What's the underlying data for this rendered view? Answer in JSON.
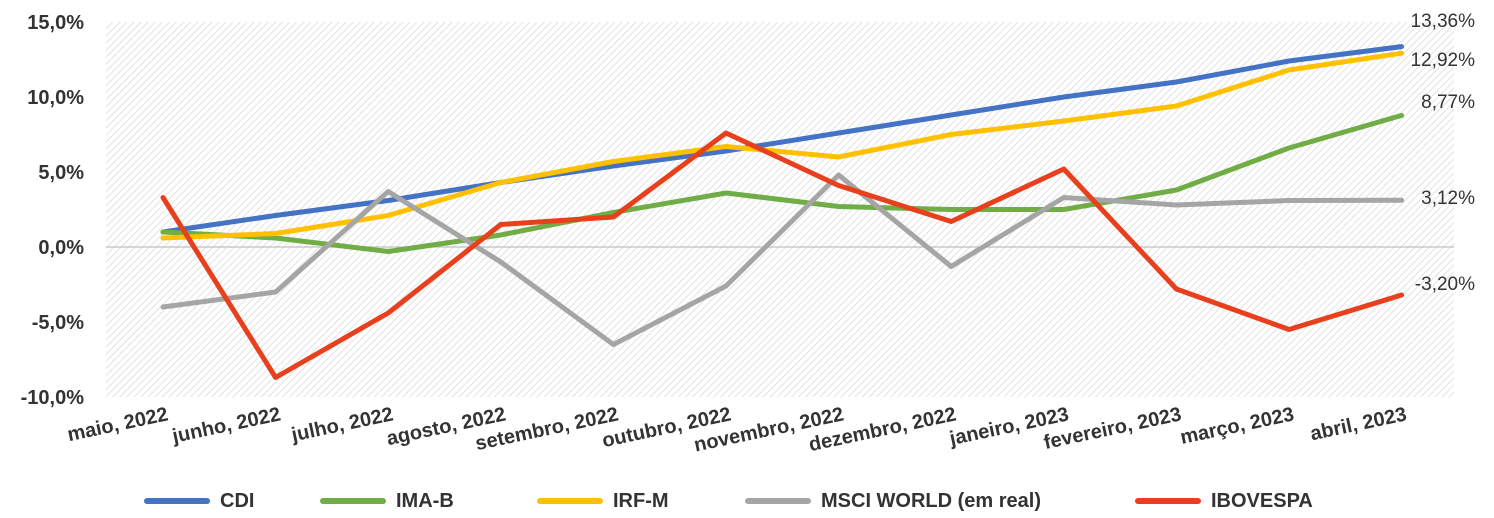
{
  "chart_data": {
    "type": "line",
    "title": "",
    "xlabel": "",
    "ylabel": "",
    "ylim": [
      -10,
      15
    ],
    "yticks": [
      {
        "value": 15,
        "label": "15,0%"
      },
      {
        "value": 10,
        "label": "10,0%"
      },
      {
        "value": 5,
        "label": "5,0%"
      },
      {
        "value": 0,
        "label": "0,0%"
      },
      {
        "value": -5,
        "label": "-5,0%"
      },
      {
        "value": -10,
        "label": "-10,0%"
      }
    ],
    "categories": [
      "maio, 2022",
      "junho, 2022",
      "julho, 2022",
      "agosto, 2022",
      "setembro, 2022",
      "outubro, 2022",
      "novembro, 2022",
      "dezembro, 2022",
      "janeiro, 2023",
      "fevereiro, 2023",
      "março, 2023",
      "abril, 2023"
    ],
    "grid": false,
    "legend_position": "bottom",
    "series": [
      {
        "name": "CDI",
        "color": "#4472c4",
        "values": [
          1.0,
          2.1,
          3.1,
          4.3,
          5.4,
          6.4,
          7.6,
          8.8,
          10.0,
          11.0,
          12.4,
          13.36
        ],
        "end_label": "13,36%"
      },
      {
        "name": "IMA-B",
        "color": "#70ad47",
        "values": [
          1.0,
          0.6,
          -0.3,
          0.8,
          2.3,
          3.6,
          2.7,
          2.5,
          2.5,
          3.8,
          6.6,
          8.77
        ],
        "end_label": "8,77%"
      },
      {
        "name": "IRF-M",
        "color": "#ffc000",
        "values": [
          0.6,
          0.9,
          2.1,
          4.3,
          5.7,
          6.7,
          6.0,
          7.5,
          8.4,
          9.4,
          11.8,
          12.92
        ],
        "end_label": "12,92%"
      },
      {
        "name": "MSCI WORLD (em real)",
        "color": "#a5a5a5",
        "values": [
          -4.0,
          -3.0,
          3.7,
          -1.0,
          -6.5,
          -2.6,
          4.8,
          -1.3,
          3.3,
          2.8,
          3.1,
          3.12
        ],
        "end_label": "3,12%"
      },
      {
        "name": "IBOVESPA",
        "color": "#e8401c",
        "values": [
          3.3,
          -8.7,
          -4.4,
          1.5,
          2.0,
          7.6,
          4.1,
          1.7,
          5.2,
          -2.8,
          -5.5,
          -3.2
        ],
        "end_label": "-3,20%"
      }
    ]
  }
}
